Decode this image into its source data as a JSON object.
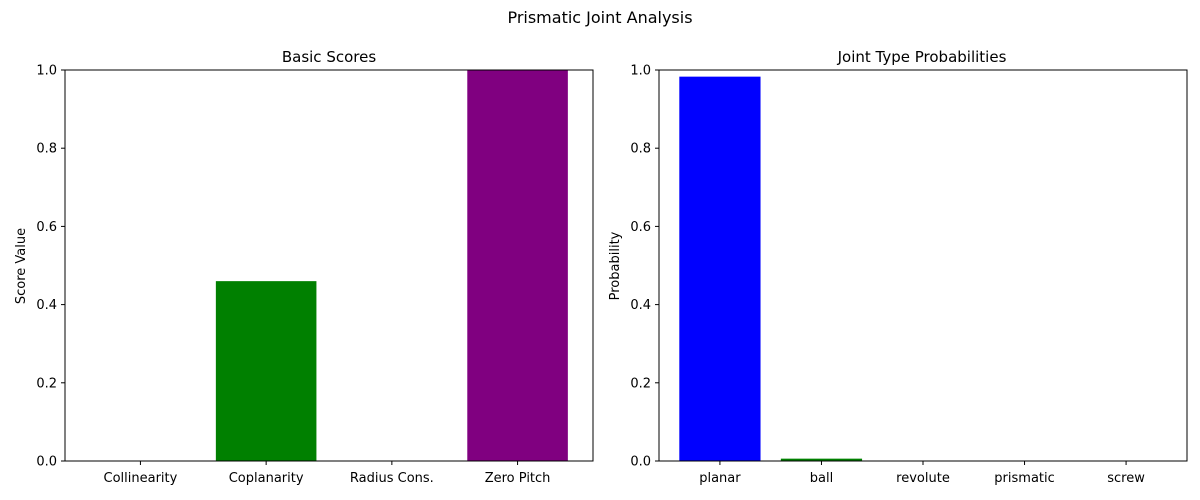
{
  "figure_title": "Prismatic Joint Analysis",
  "chart_data": [
    {
      "type": "bar",
      "title": "Basic Scores",
      "xlabel": "",
      "ylabel": "Score Value",
      "categories": [
        "Collinearity",
        "Coplanarity",
        "Radius Cons.",
        "Zero Pitch"
      ],
      "values": [
        0.0,
        0.46,
        0.0,
        1.0
      ],
      "colors": [
        "#0000ff",
        "#008000",
        "#ff0000",
        "#800080"
      ],
      "ylim": [
        0,
        1.0
      ],
      "yticks": [
        "0.0",
        "0.2",
        "0.4",
        "0.6",
        "0.8",
        "1.0"
      ],
      "grid": false
    },
    {
      "type": "bar",
      "title": "Joint Type Probabilities",
      "xlabel": "",
      "ylabel": "Probability",
      "categories": [
        "planar",
        "ball",
        "revolute",
        "prismatic",
        "screw"
      ],
      "values": [
        0.983,
        0.006,
        0.0005,
        0.0003,
        0.0002
      ],
      "colors": [
        "#0000ff",
        "#008000",
        "#ff0000",
        "#800080",
        "#ffa500"
      ],
      "ylim": [
        0,
        1.0
      ],
      "yticks": [
        "0.0",
        "0.2",
        "0.4",
        "0.6",
        "0.8",
        "1.0"
      ],
      "grid": false
    }
  ]
}
